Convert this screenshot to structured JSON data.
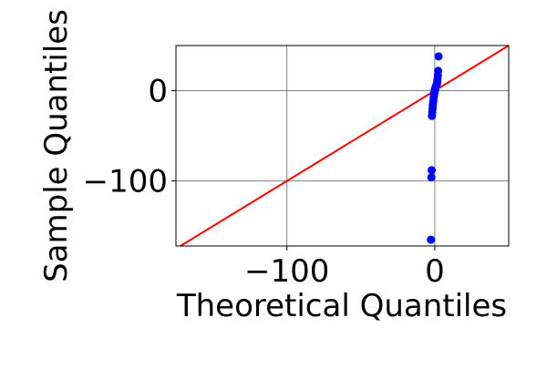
{
  "chart_data": {
    "type": "scatter",
    "title": "",
    "xlabel": "Theoretical Quantiles",
    "ylabel": "Sample Quantiles",
    "xlim": [
      -175,
      50
    ],
    "ylim": [
      -172,
      50
    ],
    "x_ticks": [
      {
        "value": -100,
        "label": "−100"
      },
      {
        "value": 0,
        "label": "0"
      }
    ],
    "y_ticks": [
      {
        "value": -100,
        "label": "−100"
      },
      {
        "value": 0,
        "label": "0"
      }
    ],
    "grid": true,
    "points": [
      {
        "x": -2.6,
        "y": -165
      },
      {
        "x": -2.3,
        "y": -96
      },
      {
        "x": -2.1,
        "y": -88
      },
      {
        "x": -1.9,
        "y": -28
      },
      {
        "x": -1.7,
        "y": -24
      },
      {
        "x": -1.5,
        "y": -20
      },
      {
        "x": -1.3,
        "y": -16
      },
      {
        "x": -1.1,
        "y": -13
      },
      {
        "x": -0.9,
        "y": -10
      },
      {
        "x": -0.7,
        "y": -7
      },
      {
        "x": -0.5,
        "y": -5
      },
      {
        "x": -0.3,
        "y": -3
      },
      {
        "x": -0.1,
        "y": -1
      },
      {
        "x": 0.1,
        "y": 1
      },
      {
        "x": 0.3,
        "y": 2
      },
      {
        "x": 0.5,
        "y": 3
      },
      {
        "x": 0.7,
        "y": 4
      },
      {
        "x": 0.9,
        "y": 5
      },
      {
        "x": 1.1,
        "y": 6
      },
      {
        "x": 1.3,
        "y": 7
      },
      {
        "x": 1.5,
        "y": 8
      },
      {
        "x": 1.7,
        "y": 10
      },
      {
        "x": 1.9,
        "y": 13
      },
      {
        "x": 2.1,
        "y": 17
      },
      {
        "x": 2.3,
        "y": 22
      },
      {
        "x": 2.6,
        "y": 38
      }
    ],
    "reference_line": {
      "slope": 1,
      "intercept": 0
    },
    "colors": {
      "points": "#0000ff",
      "reference_line": "#ff0000",
      "grid": "#808080"
    }
  }
}
